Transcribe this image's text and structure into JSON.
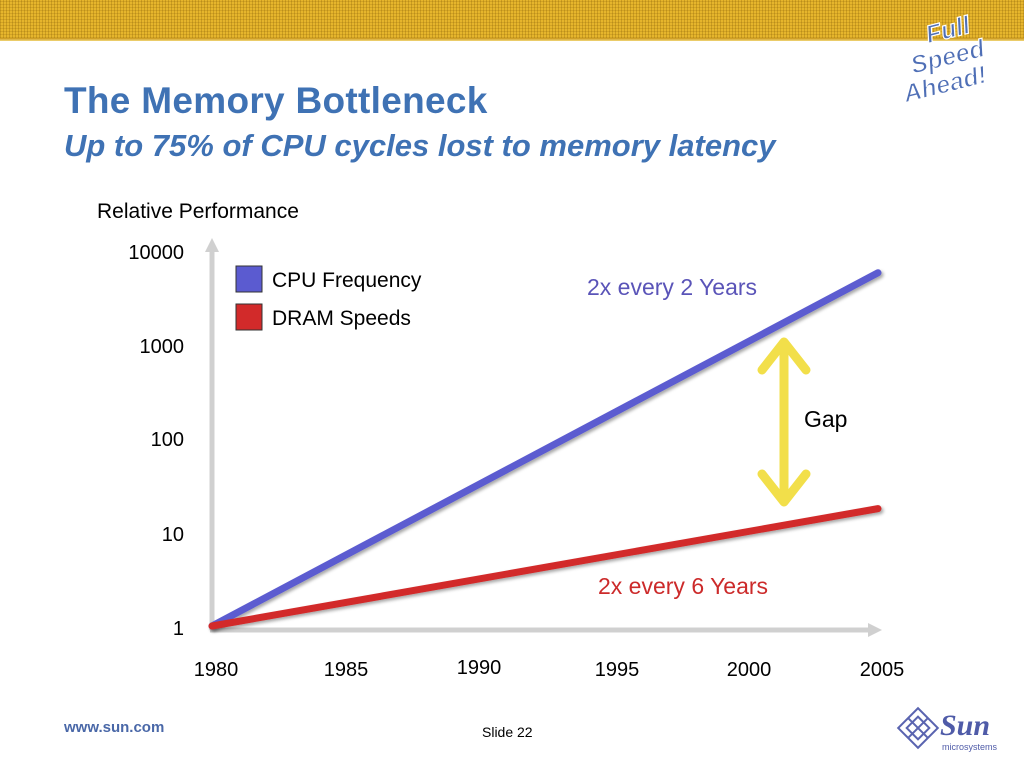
{
  "slide": {
    "title": "The Memory Bottleneck",
    "subtitle": "Up to 75% of CPU cycles lost to memory latency",
    "badge_text": [
      "Full",
      "Speed",
      "Ahead!"
    ],
    "footer_url": "www.sun.com",
    "slide_number": "Slide 22",
    "logo_text": "Sun",
    "logo_subtext": "microsystems",
    "colors": {
      "title": "#3f72b4",
      "band": "#e6b52c",
      "cpu": "#5b5bd0",
      "dram": "#d22a2a",
      "gap_arrow": "#f2df4a"
    }
  },
  "chart_data": {
    "type": "line",
    "ylabel": "Relative Performance",
    "yscale": "log",
    "yticks": [
      "10000",
      "1000",
      "100",
      "10",
      "1"
    ],
    "ytick_values": [
      10000,
      1000,
      100,
      10,
      1
    ],
    "xticks": [
      "1980",
      "1985",
      "1990",
      "1995",
      "2000",
      "2005"
    ],
    "xtick_values": [
      1980,
      1985,
      1990,
      1995,
      2000,
      2005
    ],
    "xlim": [
      1980,
      2005
    ],
    "ylim": [
      1,
      10000
    ],
    "series": [
      {
        "name": "CPU Frequency",
        "color": "#5b5bd0",
        "x": [
          1980,
          2005
        ],
        "y": [
          1,
          6000
        ]
      },
      {
        "name": "DRAM Speeds",
        "color": "#d22a2a",
        "x": [
          1980,
          2005
        ],
        "y": [
          1,
          18
        ]
      }
    ],
    "legend_position": "top-left",
    "annotations": [
      {
        "text": "2x every 2 Years",
        "color": "#5a54b8",
        "series": "CPU Frequency"
      },
      {
        "text": "2x every 6 Years",
        "color": "#cc2a2a",
        "series": "DRAM Speeds"
      },
      {
        "text": "Gap",
        "color": "#000000",
        "series": ""
      }
    ]
  }
}
